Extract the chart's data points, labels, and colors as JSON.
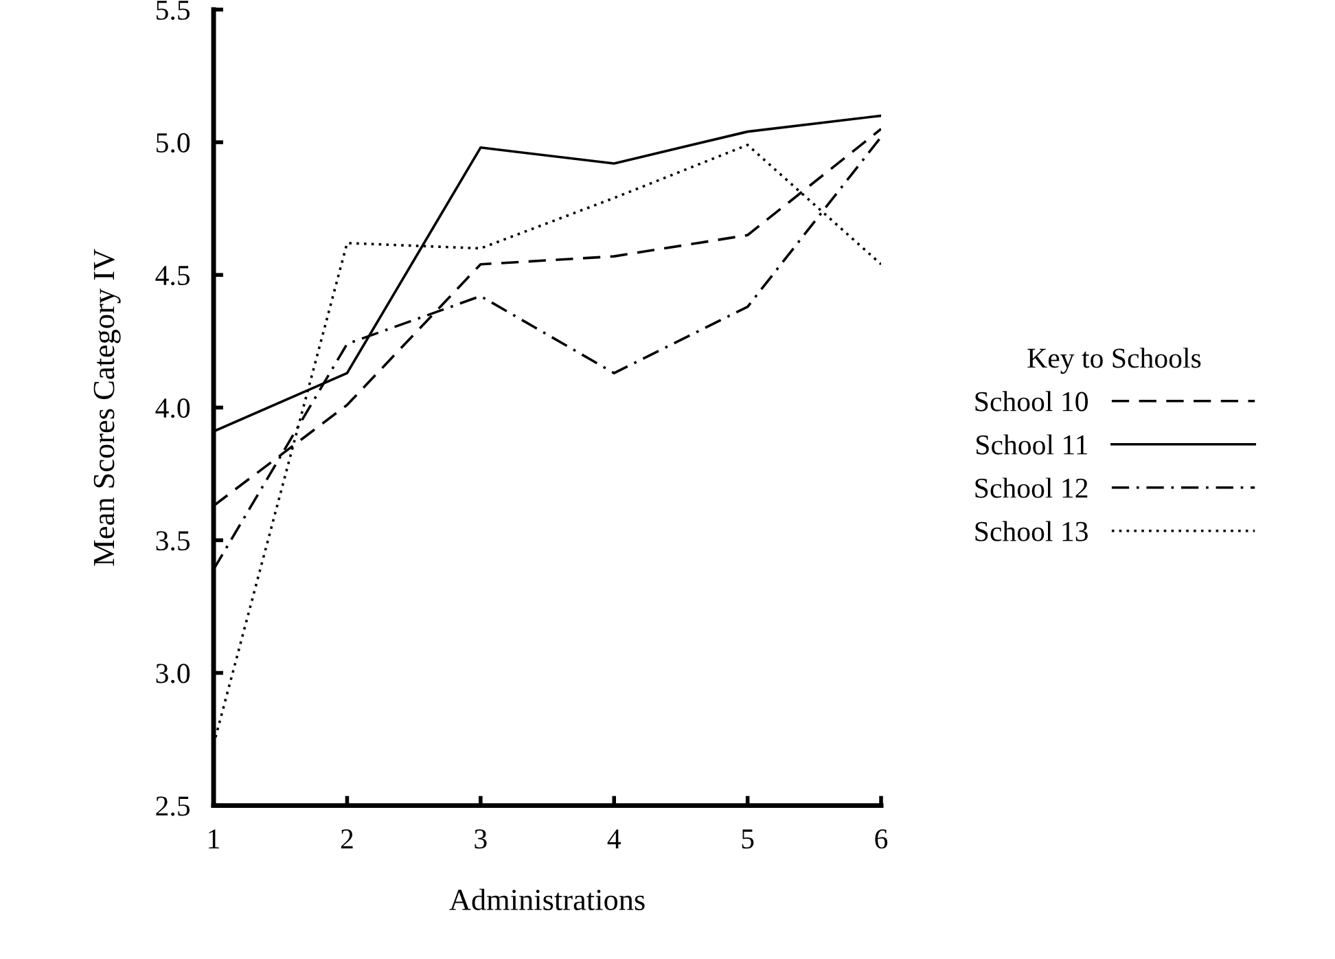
{
  "chart_data": {
    "type": "line",
    "xlabel": "Administrations",
    "ylabel": "Mean Scores Category IV",
    "legend_title": "Key to Schools",
    "legend": "right",
    "grid": false,
    "marker": "none",
    "x": [
      1,
      2,
      3,
      4,
      5,
      6
    ],
    "xlim": [
      1,
      6
    ],
    "xticks": [
      1,
      2,
      3,
      4,
      5,
      6
    ],
    "ylim": [
      2.5,
      5.5
    ],
    "yticks": [
      {
        "value": 2.5,
        "label": "2.5"
      },
      {
        "value": 3.0,
        "label": "3.0"
      },
      {
        "value": 3.5,
        "label": "3.5"
      },
      {
        "value": 4.0,
        "label": "4.0"
      },
      {
        "value": 4.5,
        "label": "4.5"
      },
      {
        "value": 5.0,
        "label": "5.0"
      },
      {
        "value": 5.5,
        "label": "5.5"
      }
    ],
    "series": [
      {
        "name": "School 10",
        "color": "#000000",
        "line_style": "dashed",
        "values": [
          3.63,
          4.01,
          4.54,
          4.57,
          4.65,
          5.05
        ]
      },
      {
        "name": "School 11",
        "color": "#000000",
        "line_style": "solid",
        "values": [
          3.91,
          4.13,
          4.98,
          4.92,
          5.04,
          5.1
        ]
      },
      {
        "name": "School 12",
        "color": "#000000",
        "line_style": "dashdot",
        "values": [
          3.39,
          4.24,
          4.42,
          4.13,
          4.38,
          5.02
        ]
      },
      {
        "name": "School 13",
        "color": "#000000",
        "line_style": "dotted",
        "values": [
          2.73,
          4.62,
          4.6,
          4.79,
          4.99,
          4.54
        ]
      }
    ]
  }
}
